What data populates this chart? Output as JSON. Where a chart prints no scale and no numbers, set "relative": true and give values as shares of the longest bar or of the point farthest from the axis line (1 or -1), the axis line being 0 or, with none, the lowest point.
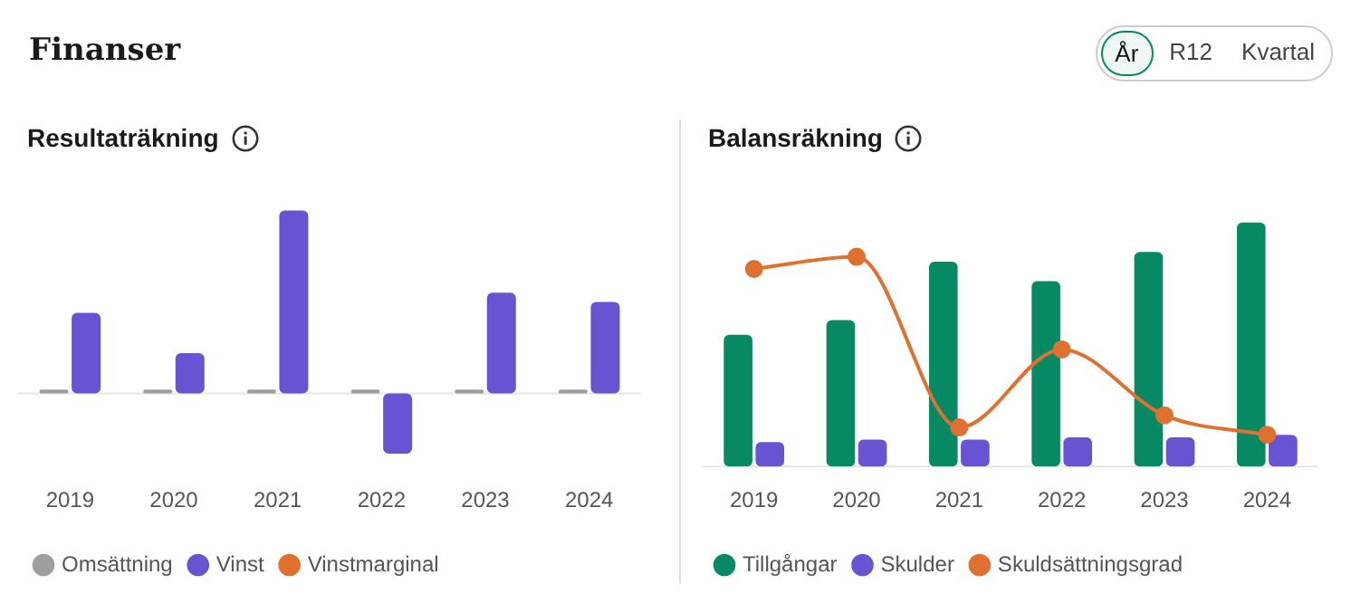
{
  "chart_data": [
    {
      "type": "other",
      "title": "Finanser",
      "annotations": [
        "År",
        "R12",
        "Kvartal"
      ]
    },
    {
      "type": "bar",
      "title": "Resultaträkning",
      "relative": true,
      "categories": [
        "2019",
        "2020",
        "2021",
        "2022",
        "2023",
        "2024"
      ],
      "legend": "bottom left",
      "grid": false,
      "series": [
        {
          "name": "Omsättning",
          "color": "#9e9e9e",
          "values": [
            0.02,
            0.02,
            0.02,
            0.02,
            0.02,
            0.02
          ]
        },
        {
          "name": "Vinst",
          "color": "#6853d3",
          "values": [
            0.44,
            0.22,
            1,
            -0.33,
            0.55,
            0.5
          ]
        },
        {
          "name": "Vinstmarginal",
          "type": "line",
          "color": "#e0702f",
          "values": [
            null,
            null,
            null,
            null,
            null,
            null
          ]
        }
      ]
    },
    {
      "type": "bar",
      "title": "Balansräkning",
      "relative": true,
      "categories": [
        "2019",
        "2020",
        "2021",
        "2022",
        "2023",
        "2024"
      ],
      "legend": "bottom left",
      "grid": false,
      "marker": "circle",
      "line_style": "solid",
      "series": [
        {
          "name": "Tillgångar",
          "color": "#078a64",
          "values": [
            0.54,
            0.6,
            0.84,
            0.76,
            0.88,
            1
          ]
        },
        {
          "name": "Skulder",
          "color": "#6853d3",
          "values": [
            0.1,
            0.11,
            0.11,
            0.12,
            0.12,
            0.13
          ]
        },
        {
          "name": "Skuldsättningsgrad",
          "type": "line",
          "color": "#e0702f",
          "values": [
            0.81,
            0.86,
            0.16,
            0.48,
            0.21,
            0.13
          ]
        }
      ]
    }
  ]
}
